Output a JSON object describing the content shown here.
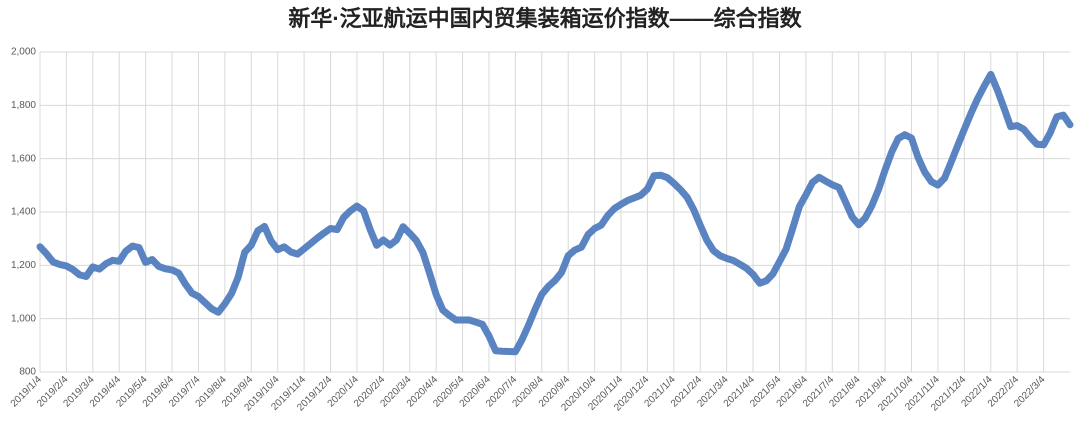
{
  "chart_data": {
    "type": "line",
    "title": "新华·泛亚航运中国内贸集装箱运价指数——综合指数",
    "categories": [
      "2019/1/4",
      null,
      null,
      null,
      "2019/2/4",
      null,
      null,
      null,
      "2019/3/4",
      null,
      null,
      null,
      "2019/4/4",
      null,
      null,
      null,
      "2019/5/4",
      null,
      null,
      null,
      "2019/6/4",
      null,
      null,
      null,
      "2019/7/4",
      null,
      null,
      null,
      "2019/8/4",
      null,
      null,
      null,
      "2019/9/4",
      null,
      null,
      null,
      "2019/10/4",
      null,
      null,
      null,
      "2019/11/4",
      null,
      null,
      null,
      "2019/12/4",
      null,
      null,
      null,
      "2020/1/4",
      null,
      null,
      null,
      "2020/2/4",
      null,
      null,
      null,
      "2020/3/4",
      null,
      null,
      null,
      "2020/4/4",
      null,
      null,
      null,
      "2020/5/4",
      null,
      null,
      null,
      "2020/6/4",
      null,
      null,
      null,
      "2020/7/4",
      null,
      null,
      null,
      "2020/8/4",
      null,
      null,
      null,
      "2020/9/4",
      null,
      null,
      null,
      "2020/10/4",
      null,
      null,
      null,
      "2020/11/4",
      null,
      null,
      null,
      "2020/12/4",
      null,
      null,
      null,
      "2021/1/4",
      null,
      null,
      null,
      "2021/2/4",
      null,
      null,
      null,
      "2021/3/4",
      null,
      null,
      null,
      "2021/4/4",
      null,
      null,
      null,
      "2021/5/4",
      null,
      null,
      null,
      "2021/6/4",
      null,
      null,
      null,
      "2021/7/4",
      null,
      null,
      null,
      "2021/8/4",
      null,
      null,
      null,
      "2021/9/4",
      null,
      null,
      null,
      "2021/10/4",
      null,
      null,
      null,
      "2021/11/4",
      null,
      null,
      null,
      "2021/12/4",
      null,
      null,
      null,
      "2022/1/4",
      null,
      null,
      null,
      "2022/2/4",
      null,
      null,
      null,
      "2022/3/4",
      null,
      null,
      null,
      null
    ],
    "values": [
      1270,
      1243,
      1212,
      1203,
      1198,
      1184,
      1164,
      1158,
      1194,
      1186,
      1206,
      1219,
      1215,
      1253,
      1272,
      1267,
      1211,
      1222,
      1196,
      1187,
      1183,
      1171,
      1130,
      1096,
      1083,
      1060,
      1037,
      1024,
      1056,
      1094,
      1155,
      1249,
      1276,
      1330,
      1346,
      1291,
      1259,
      1269,
      1250,
      1242,
      1262,
      1282,
      1302,
      1321,
      1338,
      1334,
      1380,
      1404,
      1422,
      1405,
      1335,
      1275,
      1295,
      1276,
      1295,
      1345,
      1320,
      1293,
      1248,
      1170,
      1090,
      1032,
      1012,
      995,
      995,
      995,
      987,
      979,
      935,
      880,
      878,
      877,
      876,
      921,
      976,
      1036,
      1091,
      1121,
      1143,
      1174,
      1236,
      1257,
      1268,
      1315,
      1338,
      1351,
      1387,
      1413,
      1429,
      1443,
      1453,
      1463,
      1486,
      1536,
      1538,
      1529,
      1508,
      1484,
      1455,
      1409,
      1350,
      1294,
      1255,
      1236,
      1226,
      1218,
      1204,
      1189,
      1166,
      1133,
      1142,
      1168,
      1214,
      1261,
      1339,
      1420,
      1464,
      1511,
      1530,
      1516,
      1502,
      1492,
      1438,
      1382,
      1352,
      1378,
      1424,
      1484,
      1558,
      1625,
      1676,
      1690,
      1677,
      1604,
      1550,
      1514,
      1501,
      1527,
      1588,
      1650,
      1711,
      1770,
      1825,
      1872,
      1916,
      1857,
      1790,
      1720,
      1724,
      1710,
      1680,
      1654,
      1652,
      1697,
      1757,
      1763,
      1727
    ],
    "color": "#5a83c2",
    "ylim": [
      800,
      2000
    ],
    "yticks": [
      800,
      {
        "value": 1000,
        "label": "1,000"
      },
      {
        "value": 1200,
        "label": "1,200"
      },
      {
        "value": 1400,
        "label": "1,400"
      },
      {
        "value": 1600,
        "label": "1,600"
      },
      {
        "value": 1800,
        "label": "1,800"
      },
      {
        "value": 2000,
        "label": "2,000"
      }
    ],
    "grid": true
  }
}
